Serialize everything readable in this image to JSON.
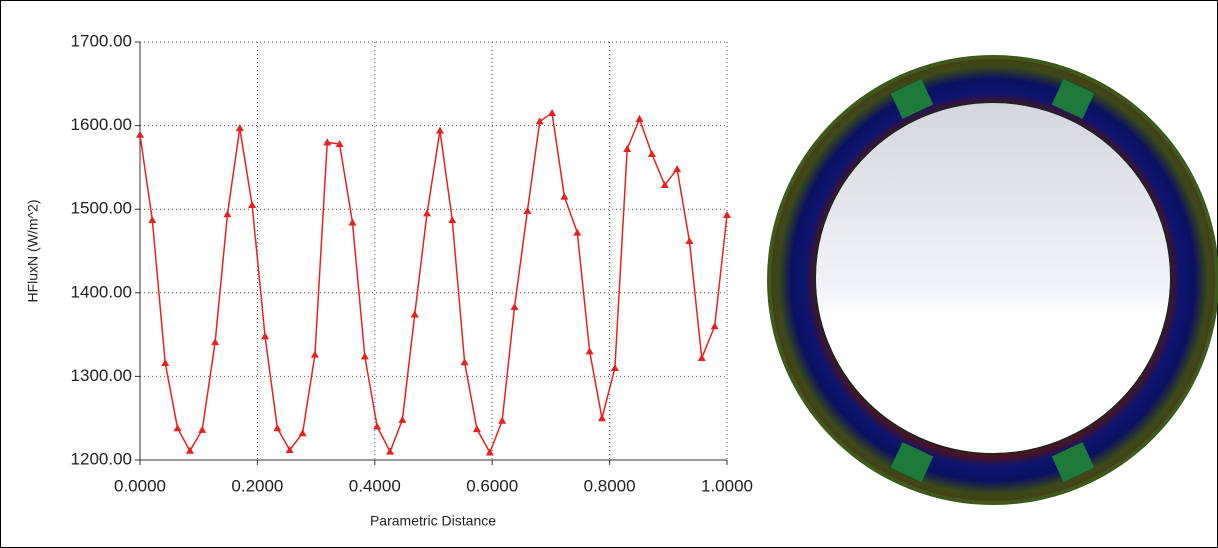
{
  "chart_data": {
    "type": "line",
    "x_label": "Parametric Distance",
    "y_label": "HFluxN (W/m^2)",
    "x": [
      0,
      0.021,
      0.043,
      0.064,
      0.085,
      0.106,
      0.128,
      0.149,
      0.17,
      0.191,
      0.213,
      0.234,
      0.255,
      0.277,
      0.298,
      0.319,
      0.34,
      0.362,
      0.383,
      0.404,
      0.426,
      0.447,
      0.468,
      0.489,
      0.511,
      0.532,
      0.553,
      0.574,
      0.596,
      0.617,
      0.638,
      0.66,
      0.681,
      0.702,
      0.723,
      0.745,
      0.766,
      0.787,
      0.809,
      0.83,
      0.851,
      0.872,
      0.894,
      0.915,
      0.936,
      0.957,
      0.979,
      1.0
    ],
    "values": [
      1589,
      1487,
      1316,
      1238,
      1211,
      1236,
      1341,
      1494,
      1597,
      1505,
      1348,
      1238,
      1212,
      1232,
      1326,
      1580,
      1578,
      1484,
      1324,
      1240,
      1210,
      1248,
      1374,
      1495,
      1594,
      1487,
      1317,
      1237,
      1209,
      1247,
      1383,
      1498,
      1605,
      1615,
      1515,
      1472,
      1330,
      1250,
      1310,
      1572,
      1608,
      1566,
      1529,
      1548,
      1462,
      1322,
      1360,
      1493
    ],
    "color": "#e8201e",
    "xlim": [
      0,
      1
    ],
    "ylim": [
      1200,
      1700
    ],
    "xticks": [
      {
        "value": 0,
        "label": "0.0000"
      },
      {
        "value": 0.2,
        "label": "0.2000"
      },
      {
        "value": 0.4,
        "label": "0.4000"
      },
      {
        "value": 0.6,
        "label": "0.6000"
      },
      {
        "value": 0.8,
        "label": "0.8000"
      },
      {
        "value": 1,
        "label": "1.0000"
      }
    ],
    "yticks": [
      {
        "value": 1200,
        "label": "1200.00"
      },
      {
        "value": 1300,
        "label": "1300.00"
      },
      {
        "value": 1400,
        "label": "1400.00"
      },
      {
        "value": 1500,
        "label": "1500.00"
      },
      {
        "value": 1600,
        "label": "1600.00"
      },
      {
        "value": 1700,
        "label": "1700.00"
      }
    ],
    "grid": true
  }
}
